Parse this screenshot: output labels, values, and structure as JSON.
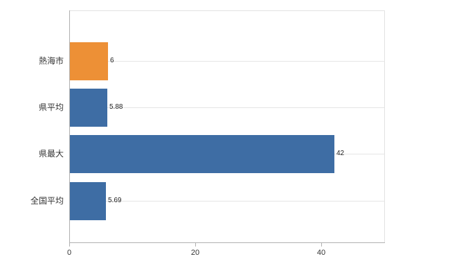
{
  "chart_data": {
    "type": "bar",
    "orientation": "horizontal",
    "title": "",
    "xlabel": "",
    "ylabel": "",
    "categories": [
      "熱海市",
      "県平均",
      "県最大",
      "全国平均"
    ],
    "values": [
      6,
      5.88,
      42,
      5.69
    ],
    "value_labels": [
      "6",
      "5.88",
      "42",
      "5.69"
    ],
    "bar_colors": [
      "#ED9036",
      "#3E6DA4",
      "#3E6DA4",
      "#3E6DA4"
    ],
    "xlim": [
      0,
      50
    ],
    "x_ticks": [
      0,
      20,
      40
    ],
    "x_tick_labels": [
      "0",
      "20",
      "40"
    ],
    "grid": true,
    "legend": "none"
  },
  "colors": {
    "bar_orange": "#ED9036",
    "bar_blue": "#3E6DA4",
    "axis": "#b0b0b0",
    "grid": "#e5e5e5",
    "text": "#333333"
  }
}
